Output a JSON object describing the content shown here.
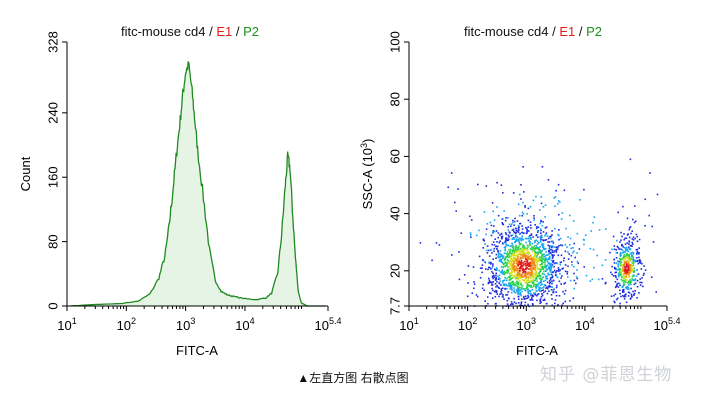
{
  "chart_data": [
    {
      "type": "area",
      "title_parts": [
        {
          "text": "fitc-mouse cd4",
          "color": "#111111"
        },
        {
          "text": " / ",
          "color": "#111111"
        },
        {
          "text": "E1",
          "color": "#e21d1d"
        },
        {
          "text": " / ",
          "color": "#111111"
        },
        {
          "text": "P2",
          "color": "#1a8f1a"
        }
      ],
      "xlabel": "FITC-A",
      "ylabel": "Count",
      "x_scale": "log",
      "xlim": [
        1,
        5.4
      ],
      "ylim": [
        0,
        328
      ],
      "x_ticks": [
        {
          "base": "10",
          "exp": "1"
        },
        {
          "base": "10",
          "exp": "2"
        },
        {
          "base": "10",
          "exp": "3"
        },
        {
          "base": "10",
          "exp": "4"
        },
        {
          "base": "10",
          "exp": "5.4"
        }
      ],
      "y_ticks": [
        "0",
        "80",
        "160",
        "240",
        "328"
      ],
      "line_color": "#1f8a1f",
      "fill_color": "#e6f4e6",
      "series": [
        {
          "x": [
            1.05,
            1.5,
            1.9,
            2.2,
            2.4,
            2.55,
            2.65,
            2.72,
            2.78,
            2.84,
            2.9,
            2.95,
            3.0,
            3.05,
            3.1,
            3.15,
            3.2,
            3.3,
            3.4,
            3.5,
            3.6,
            3.7,
            3.8,
            4.0,
            4.2,
            4.35,
            4.45,
            4.55,
            4.62,
            4.68,
            4.72,
            4.76,
            4.8,
            4.85,
            4.9,
            4.95,
            5.05,
            5.2,
            5.35
          ],
          "y": [
            0,
            2,
            3,
            6,
            15,
            35,
            62,
            98,
            140,
            185,
            225,
            262,
            290,
            300,
            272,
            235,
            195,
            135,
            70,
            32,
            18,
            14,
            12,
            9,
            8,
            10,
            16,
            40,
            90,
            150,
            185,
            172,
            120,
            60,
            18,
            4,
            0,
            0,
            0
          ]
        }
      ]
    },
    {
      "type": "scatter",
      "title_parts": [
        {
          "text": "fitc-mouse cd4",
          "color": "#111111"
        },
        {
          "text": " / ",
          "color": "#111111"
        },
        {
          "text": "E1",
          "color": "#e21d1d"
        },
        {
          "text": " / ",
          "color": "#111111"
        },
        {
          "text": "P2",
          "color": "#1a8f1a"
        }
      ],
      "xlabel": "FITC-A",
      "ylabel_main": "SSC-A (10",
      "ylabel_sup": "3",
      "ylabel_end": ")",
      "x_scale": "log",
      "xlim": [
        1,
        5.4
      ],
      "ylim": [
        7.7,
        100
      ],
      "x_ticks": [
        {
          "base": "10",
          "exp": "1"
        },
        {
          "base": "10",
          "exp": "2"
        },
        {
          "base": "10",
          "exp": "3"
        },
        {
          "base": "10",
          "exp": "4"
        },
        {
          "base": "10",
          "exp": "5.4"
        }
      ],
      "y_ticks": [
        "7.7",
        "20",
        "40",
        "60",
        "80",
        "100"
      ],
      "density_colors": [
        "#1e2de0",
        "#17a6ef",
        "#2bd24a",
        "#d5e01e",
        "#f48a17",
        "#e21d1d"
      ],
      "clusters": [
        {
          "cx": 2.95,
          "cy": 22,
          "sx": 0.32,
          "sy": 7,
          "n": 1500
        },
        {
          "cx": 4.7,
          "cy": 21,
          "sx": 0.12,
          "sy": 5,
          "n": 420
        },
        {
          "cx": 3.3,
          "cy": 30,
          "sx": 0.9,
          "sy": 12,
          "n": 260
        }
      ]
    }
  ],
  "caption": "▲左直方图    右散点图",
  "watermark": "知乎 @菲恩生物"
}
